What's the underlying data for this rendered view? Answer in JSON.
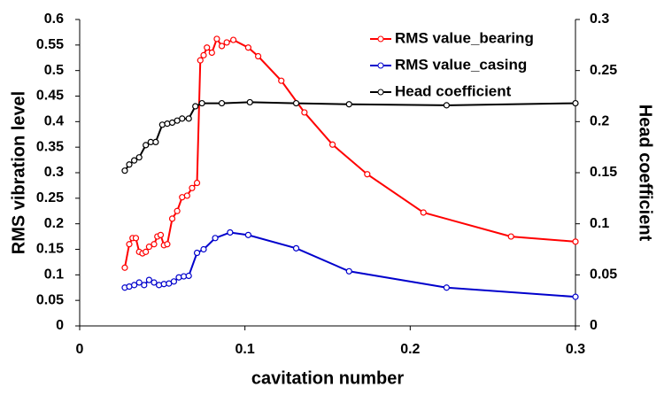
{
  "chart_data": {
    "type": "line",
    "xlabel": "cavitation number",
    "ylabel": "RMS vibration level",
    "y2label": "Head coefficient",
    "xlim": [
      0,
      0.3
    ],
    "xticks": [
      0,
      0.1,
      0.2,
      0.3
    ],
    "ylim": [
      0,
      0.6
    ],
    "yticks": [
      0,
      0.05,
      0.1,
      0.15,
      0.2,
      0.25,
      0.3,
      0.35,
      0.4,
      0.45,
      0.5,
      0.55,
      0.6
    ],
    "y2lim": [
      0,
      0.3
    ],
    "y2ticks": [
      0,
      0.05,
      0.1,
      0.15,
      0.2,
      0.25,
      0.3
    ],
    "legend": "upper right",
    "grid": false,
    "series": [
      {
        "name": "RMS value_bearing",
        "color": "#ff0000",
        "x": [
          0.0273,
          0.03,
          0.032,
          0.034,
          0.036,
          0.038,
          0.04,
          0.042,
          0.045,
          0.047,
          0.049,
          0.051,
          0.053,
          0.056,
          0.059,
          0.062,
          0.065,
          0.068,
          0.071,
          0.073,
          0.075,
          0.077,
          0.08,
          0.083,
          0.086,
          0.089,
          0.093,
          0.102,
          0.108,
          0.122,
          0.136,
          0.153,
          0.174,
          0.208,
          0.261,
          0.3
        ],
        "values": [
          0.114,
          0.16,
          0.172,
          0.172,
          0.145,
          0.142,
          0.145,
          0.155,
          0.16,
          0.175,
          0.178,
          0.158,
          0.16,
          0.21,
          0.225,
          0.252,
          0.255,
          0.27,
          0.28,
          0.52,
          0.53,
          0.545,
          0.535,
          0.562,
          0.548,
          0.555,
          0.56,
          0.545,
          0.528,
          0.48,
          0.418,
          0.355,
          0.297,
          0.222,
          0.175,
          0.165
        ]
      },
      {
        "name": "RMS value_casing",
        "color": "#0000cc",
        "x": [
          0.0273,
          0.03,
          0.033,
          0.036,
          0.039,
          0.042,
          0.045,
          0.048,
          0.051,
          0.054,
          0.057,
          0.06,
          0.063,
          0.066,
          0.071,
          0.075,
          0.082,
          0.091,
          0.102,
          0.131,
          0.163,
          0.222,
          0.3
        ],
        "values": [
          0.075,
          0.077,
          0.08,
          0.085,
          0.08,
          0.09,
          0.085,
          0.08,
          0.082,
          0.083,
          0.087,
          0.095,
          0.097,
          0.098,
          0.143,
          0.15,
          0.172,
          0.183,
          0.178,
          0.152,
          0.107,
          0.075,
          0.057
        ]
      },
      {
        "name": "Head coefficient",
        "color": "#000000",
        "axis": "y2",
        "x": [
          0.0273,
          0.03,
          0.033,
          0.036,
          0.04,
          0.043,
          0.046,
          0.05,
          0.053,
          0.056,
          0.059,
          0.062,
          0.066,
          0.07,
          0.074,
          0.086,
          0.103,
          0.131,
          0.163,
          0.222,
          0.3
        ],
        "values": [
          0.152,
          0.158,
          0.162,
          0.165,
          0.177,
          0.18,
          0.18,
          0.197,
          0.198,
          0.199,
          0.201,
          0.203,
          0.203,
          0.215,
          0.218,
          0.218,
          0.219,
          0.218,
          0.217,
          0.216,
          0.218
        ]
      }
    ]
  }
}
